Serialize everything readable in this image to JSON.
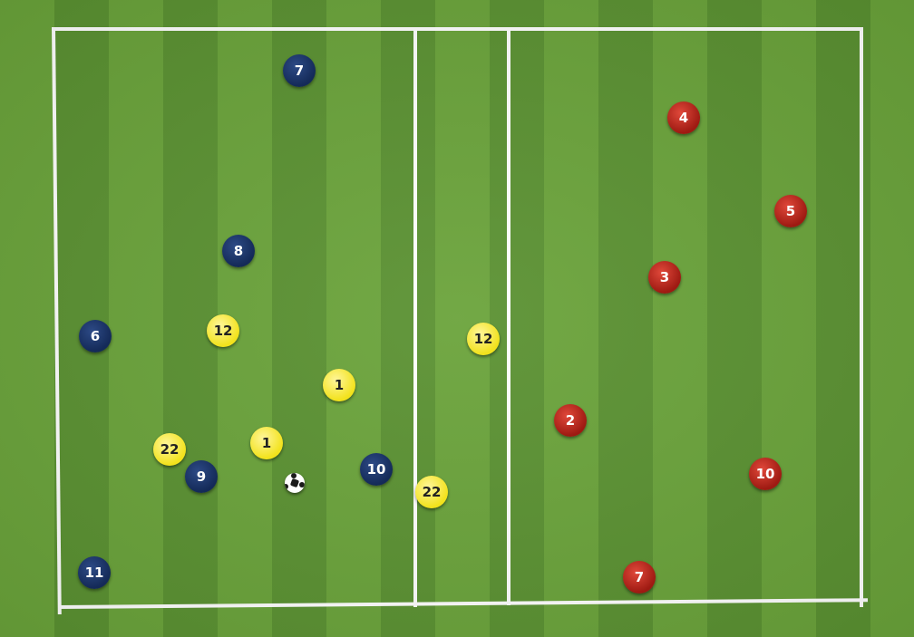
{
  "pitch": {
    "colors": {
      "grass_light": "#6aa33a",
      "grass_dark": "#5a9131",
      "lines": "#ffffff"
    }
  },
  "teams": {
    "navy": {
      "color": "#142a58",
      "players": [
        "7",
        "8",
        "6",
        "9",
        "10",
        "11"
      ]
    },
    "yellow": {
      "color": "#f2e21c",
      "players": [
        "12",
        "1",
        "22",
        "1",
        "12",
        "22"
      ]
    },
    "red": {
      "color": "#9e1a12",
      "players": [
        "4",
        "5",
        "3",
        "2",
        "10",
        "7"
      ]
    }
  },
  "ball": {
    "icon": "soccer-ball-icon"
  }
}
